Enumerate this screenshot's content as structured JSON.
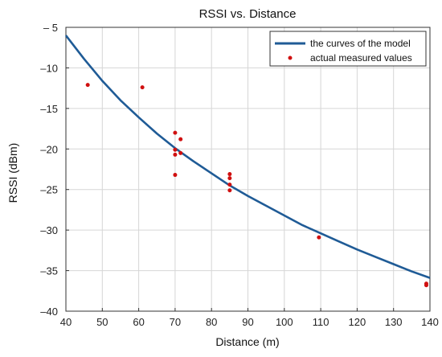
{
  "chart_data": {
    "type": "scatter",
    "title": "RSSI vs. Distance",
    "xlabel": "Distance (m)",
    "ylabel": "RSSI (dBm)",
    "xlim": [
      40,
      140
    ],
    "ylim": [
      -40,
      -5
    ],
    "xticks": [
      40,
      50,
      60,
      70,
      80,
      90,
      100,
      110,
      120,
      130,
      140
    ],
    "yticks": [
      -5,
      -10,
      -15,
      -20,
      -25,
      -30,
      -35,
      -40
    ],
    "xtick_labels": [
      "40",
      "50",
      "60",
      "70",
      "80",
      "90",
      "100",
      "110",
      "120",
      "130",
      "140"
    ],
    "ytick_labels": [
      "– 5",
      "–10",
      "–15",
      "–20",
      "–25",
      "–30",
      "–35",
      "–40"
    ],
    "grid": true,
    "legend_position": "top-right",
    "series": [
      {
        "name": "the curves of the model",
        "kind": "line",
        "color": "#1f5b96",
        "x": [
          40,
          45,
          50,
          55,
          60,
          65,
          70,
          75,
          80,
          85,
          90,
          95,
          100,
          105,
          110,
          115,
          120,
          125,
          130,
          135,
          140
        ],
        "y": [
          -6.0,
          -8.9,
          -11.6,
          -14.0,
          -16.1,
          -18.1,
          -19.9,
          -21.5,
          -23.0,
          -24.5,
          -25.8,
          -27.0,
          -28.2,
          -29.4,
          -30.4,
          -31.4,
          -32.4,
          -33.3,
          -34.2,
          -35.1,
          -35.9
        ]
      },
      {
        "name": "actual measured values",
        "kind": "scatter",
        "color": "#d01010",
        "x": [
          46,
          61,
          70,
          70,
          70,
          70,
          71.5,
          71.5,
          85,
          85,
          85,
          85,
          109.5,
          139,
          139
        ],
        "y": [
          -12.1,
          -12.4,
          -18.0,
          -20.1,
          -20.7,
          -23.2,
          -18.8,
          -20.5,
          -23.1,
          -23.6,
          -24.4,
          -25.1,
          -30.9,
          -36.6,
          -36.8
        ]
      }
    ]
  }
}
